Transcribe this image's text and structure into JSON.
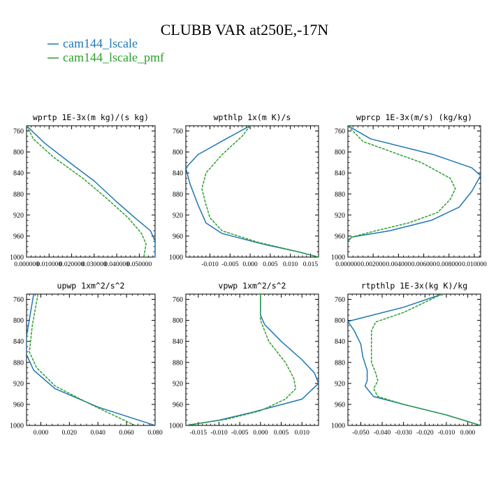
{
  "figure": {
    "title": "CLUBB VAR at250E,-17N",
    "legend": [
      {
        "name": "cam144_lscale",
        "color": "#1f77b4"
      },
      {
        "name": "cam144_lscale_pmf",
        "color": "#2ca02c"
      }
    ]
  },
  "chart_data": [
    {
      "type": "line",
      "title": "wprtp  1E-3x(m kg)/(s kg)",
      "xlim": [
        0.0,
        0.057
      ],
      "ylim": [
        1000,
        750
      ],
      "xticks": [
        0.0,
        0.01,
        0.02,
        0.03,
        0.04,
        0.05
      ],
      "xtick_labels": [
        "0.000000",
        "0.010000",
        "0.020000",
        "0.030000",
        "0.040000",
        "0.050000"
      ],
      "yticks": [
        760,
        800,
        840,
        880,
        920,
        960,
        1000
      ],
      "series": [
        {
          "name": "cam144_lscale",
          "color": "#1f77b4",
          "dashed": false,
          "x": [
            0.0,
            0.008,
            0.02,
            0.03,
            0.04,
            0.048,
            0.055,
            0.057,
            0.057
          ],
          "y": [
            750,
            783,
            823,
            855,
            895,
            925,
            950,
            970,
            1000
          ]
        },
        {
          "name": "cam144_lscale_pmf",
          "color": "#2ca02c",
          "dashed": true,
          "x": [
            0.0,
            0.003,
            0.012,
            0.025,
            0.036,
            0.045,
            0.051,
            0.053,
            0.052
          ],
          "y": [
            750,
            775,
            810,
            850,
            890,
            925,
            955,
            975,
            1000
          ]
        }
      ]
    },
    {
      "type": "line",
      "title": "wpthlp  1x(m K)/s",
      "xlim": [
        -0.016,
        0.017
      ],
      "ylim": [
        1000,
        750
      ],
      "xticks": [
        -0.01,
        -0.005,
        0.0,
        0.005,
        0.01,
        0.015
      ],
      "xtick_labels": [
        "-0.010",
        "-0.005",
        "0.000",
        "0.005",
        "0.010",
        "0.015"
      ],
      "yticks": [
        760,
        800,
        840,
        880,
        920,
        960,
        1000
      ],
      "series": [
        {
          "name": "cam144_lscale",
          "color": "#1f77b4",
          "dashed": false,
          "x": [
            0.0,
            -0.006,
            -0.013,
            -0.016,
            -0.015,
            -0.013,
            -0.011,
            -0.007,
            0.003,
            0.012,
            0.017
          ],
          "y": [
            750,
            775,
            805,
            830,
            860,
            900,
            935,
            955,
            975,
            990,
            1000
          ]
        },
        {
          "name": "cam144_lscale_pmf",
          "color": "#2ca02c",
          "dashed": true,
          "x": [
            0.0,
            -0.002,
            -0.007,
            -0.011,
            -0.012,
            -0.011,
            -0.01,
            -0.007,
            0.002,
            0.012,
            0.017
          ],
          "y": [
            750,
            770,
            805,
            840,
            870,
            900,
            925,
            950,
            972,
            990,
            1000
          ]
        }
      ]
    },
    {
      "type": "line",
      "title": "wprcp  1E-3x(m/s) (kg/kg)",
      "xlim": [
        0.0,
        0.0105
      ],
      "ylim": [
        1000,
        750
      ],
      "xticks": [
        0.0,
        0.002,
        0.004,
        0.006,
        0.008,
        0.01
      ],
      "xtick_labels": [
        "0.000000",
        "0.002000",
        "0.004000",
        "0.006000",
        "0.008000",
        "0.010000"
      ],
      "yticks": [
        760,
        800,
        840,
        880,
        920,
        960,
        1000
      ],
      "series": [
        {
          "name": "cam144_lscale",
          "color": "#1f77b4",
          "dashed": false,
          "x": [
            0.0,
            0.0018,
            0.0068,
            0.0098,
            0.0105,
            0.0098,
            0.0088,
            0.0066,
            0.0033,
            0.0003,
            0.0
          ],
          "y": [
            750,
            775,
            805,
            830,
            845,
            875,
            905,
            930,
            950,
            962,
            970
          ]
        },
        {
          "name": "cam144_lscale_pmf",
          "color": "#2ca02c",
          "dashed": true,
          "x": [
            0.0,
            0.0012,
            0.0058,
            0.0081,
            0.0085,
            0.0081,
            0.0071,
            0.0048,
            0.0022,
            0.0003,
            0.0
          ],
          "y": [
            750,
            780,
            820,
            850,
            870,
            890,
            915,
            935,
            950,
            962,
            968
          ]
        }
      ]
    },
    {
      "type": "line",
      "title": "upwp  1xm^2/s^2",
      "xlim": [
        -0.01,
        0.08
      ],
      "ylim": [
        1000,
        750
      ],
      "xticks": [
        0.0,
        0.02,
        0.04,
        0.06,
        0.08
      ],
      "xtick_labels": [
        "0.000",
        "0.020",
        "0.040",
        "0.060",
        "0.080"
      ],
      "yticks": [
        760,
        800,
        840,
        880,
        920,
        960,
        1000
      ],
      "series": [
        {
          "name": "cam144_lscale",
          "color": "#1f77b4",
          "dashed": false,
          "x": [
            -0.005,
            -0.01,
            -0.01,
            -0.005,
            0.01,
            0.04,
            0.08
          ],
          "y": [
            750,
            830,
            865,
            895,
            930,
            965,
            1000
          ]
        },
        {
          "name": "cam144_lscale_pmf",
          "color": "#2ca02c",
          "dashed": true,
          "x": [
            -0.002,
            -0.006,
            -0.008,
            -0.003,
            0.01,
            0.035,
            0.066
          ],
          "y": [
            750,
            810,
            860,
            890,
            925,
            960,
            1000
          ]
        }
      ]
    },
    {
      "type": "line",
      "title": "vpwp  1xm^2/s^2",
      "xlim": [
        -0.018,
        0.014
      ],
      "ylim": [
        1000,
        750
      ],
      "xticks": [
        -0.015,
        -0.01,
        -0.005,
        0.0,
        0.005,
        0.01
      ],
      "xtick_labels": [
        "-0.015",
        "-0.010",
        "-0.005",
        "0.000",
        "0.005",
        "0.010"
      ],
      "yticks": [
        760,
        800,
        840,
        880,
        920,
        960,
        1000
      ],
      "series": [
        {
          "name": "cam144_lscale",
          "color": "#1f77b4",
          "dashed": false,
          "x": [
            0.0,
            0.0,
            0.001,
            0.005,
            0.01,
            0.013,
            0.014,
            0.01,
            -0.002,
            -0.01,
            -0.018
          ],
          "y": [
            750,
            790,
            808,
            840,
            875,
            900,
            920,
            950,
            975,
            990,
            1000
          ]
        },
        {
          "name": "cam144_lscale_pmf",
          "color": "#2ca02c",
          "dashed": true,
          "x": [
            0.0,
            0.0,
            0.002,
            0.006,
            0.008,
            0.0085,
            0.006,
            0.0,
            -0.008,
            -0.018
          ],
          "y": [
            750,
            800,
            840,
            880,
            910,
            930,
            950,
            972,
            988,
            1000
          ]
        }
      ]
    },
    {
      "type": "line",
      "title": "rtpthlp  1E-3x(kg K)/kg",
      "xlim": [
        -0.056,
        0.006
      ],
      "ylim": [
        1000,
        750
      ],
      "xticks": [
        -0.05,
        -0.04,
        -0.03,
        -0.02,
        -0.01,
        0.0
      ],
      "xtick_labels": [
        "-0.050",
        "-0.040",
        "-0.030",
        "-0.020",
        "-0.010",
        "0.000"
      ],
      "yticks": [
        760,
        800,
        840,
        880,
        920,
        960,
        1000
      ],
      "series": [
        {
          "name": "cam144_lscale",
          "color": "#1f77b4",
          "dashed": false,
          "x": [
            -0.012,
            -0.03,
            -0.056,
            -0.053,
            -0.05,
            -0.049,
            -0.047,
            -0.047,
            -0.048,
            -0.046,
            -0.044,
            -0.03,
            -0.01,
            0.006
          ],
          "y": [
            750,
            775,
            802,
            820,
            845,
            870,
            895,
            915,
            925,
            935,
            945,
            960,
            980,
            1000
          ]
        },
        {
          "name": "cam144_lscale_pmf",
          "color": "#2ca02c",
          "dashed": true,
          "x": [
            -0.012,
            -0.03,
            -0.043,
            -0.045,
            -0.045,
            -0.045,
            -0.043,
            -0.042,
            -0.044,
            -0.042,
            -0.03,
            -0.01,
            0.006
          ],
          "y": [
            750,
            785,
            803,
            820,
            850,
            880,
            900,
            915,
            930,
            945,
            960,
            980,
            1000
          ]
        }
      ]
    }
  ]
}
